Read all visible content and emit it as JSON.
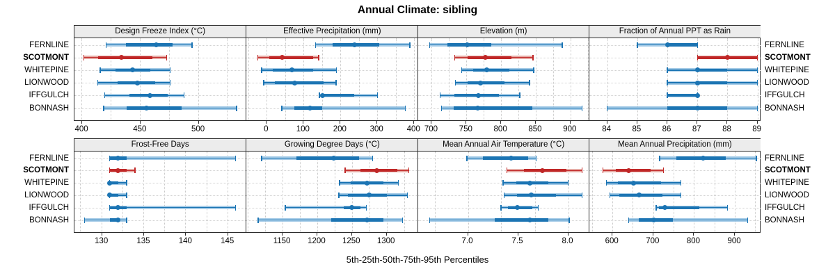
{
  "title": "Annual Climate: sibling",
  "caption": "5th-25th-50th-75th-95th Percentiles",
  "sites": [
    {
      "name": "FERNLINE",
      "highlight": false
    },
    {
      "name": "SCOTMONT",
      "highlight": true
    },
    {
      "name": "WHITEPINE",
      "highlight": false
    },
    {
      "name": "LIONWOOD",
      "highlight": false
    },
    {
      "name": "IFFGULCH",
      "highlight": false
    },
    {
      "name": "BONNASH",
      "highlight": false
    }
  ],
  "colors": {
    "series": "#1b74b3",
    "series_light": "#a5cbe7",
    "highlight": "#c02727",
    "highlight_light": "#e5a8a2",
    "grid": "#c9c9c9",
    "strip_bg": "#ececec",
    "panel_border": "#2b2b2b",
    "text": "#000000"
  },
  "chart_data": {
    "type": "dotplot",
    "subtype": "percentile-intervals",
    "percentiles": [
      5,
      25,
      50,
      75,
      95
    ],
    "rows": [
      "FERNLINE",
      "SCOTMONT",
      "WHITEPINE",
      "LIONWOOD",
      "IFFGULCH",
      "BONNASH"
    ],
    "highlighted_row": "SCOTMONT",
    "legend": "none",
    "panels": [
      {
        "row": 0,
        "title": "Design Freeze Index (°C)",
        "xlim": [
          394,
          541
        ],
        "ticks": [
          {
            "v": 400,
            "label": "400"
          },
          {
            "v": 450,
            "label": "450"
          },
          {
            "v": 500,
            "label": "500"
          }
        ],
        "grid": [
          400,
          425,
          450,
          475,
          500,
          525
        ],
        "series": {
          "FERNLINE": [
            421,
            438,
            464,
            478,
            495
          ],
          "SCOTMONT": [
            402,
            414,
            434,
            461,
            473
          ],
          "WHITEPINE": [
            416,
            429,
            444,
            459,
            476
          ],
          "LIONWOOD": [
            414,
            431,
            448,
            463,
            476
          ],
          "IFFGULCH": [
            420,
            441,
            459,
            474,
            488
          ],
          "BONNASH": [
            419,
            439,
            456,
            486,
            533
          ]
        }
      },
      {
        "row": 0,
        "title": "Effective Precipitation (mm)",
        "xlim": [
          -55,
          410
        ],
        "ticks": [
          {
            "v": 0,
            "label": "0"
          },
          {
            "v": 100,
            "label": "100"
          },
          {
            "v": 200,
            "label": "200"
          },
          {
            "v": 300,
            "label": "300"
          },
          {
            "v": 400,
            "label": "400"
          }
        ],
        "grid": [
          -50,
          0,
          50,
          100,
          150,
          200,
          250,
          300,
          350,
          400
        ],
        "series": {
          "FERNLINE": [
            132,
            178,
            239,
            305,
            388
          ],
          "SCOTMONT": [
            -24,
            6,
            41,
            125,
            141
          ],
          "WHITEPINE": [
            -14,
            16,
            69,
            125,
            189
          ],
          "LIONWOOD": [
            -8,
            22,
            76,
            154,
            188
          ],
          "IFFGULCH": [
            143,
            147,
            152,
            238,
            301
          ],
          "BONNASH": [
            41,
            75,
            118,
            150,
            376
          ]
        }
      },
      {
        "row": 0,
        "title": "Elevation (m)",
        "xlim": [
          680,
          927
        ],
        "ticks": [
          {
            "v": 700,
            "label": "700"
          },
          {
            "v": 750,
            "label": "750"
          },
          {
            "v": 800,
            "label": "800"
          },
          {
            "v": 850,
            "label": "850"
          },
          {
            "v": 900,
            "label": "900"
          }
        ],
        "grid": [
          700,
          725,
          750,
          775,
          800,
          825,
          850,
          875,
          900,
          925
        ],
        "series": {
          "FERNLINE": [
            697,
            723,
            751,
            786,
            888
          ],
          "SCOTMONT": [
            733,
            752,
            777,
            815,
            846
          ],
          "WHITEPINE": [
            743,
            760,
            779,
            812,
            847
          ],
          "LIONWOOD": [
            734,
            752,
            770,
            805,
            841
          ],
          "IFFGULCH": [
            712,
            733,
            767,
            797,
            827
          ],
          "BONNASH": [
            714,
            732,
            766,
            845,
            917
          ]
        }
      },
      {
        "row": 0,
        "title": "Fraction of Annual PPT as Rain",
        "xlim": [
          83.4,
          89.1
        ],
        "ticks": [
          {
            "v": 84,
            "label": "84"
          },
          {
            "v": 85,
            "label": "85"
          },
          {
            "v": 86,
            "label": "86"
          },
          {
            "v": 87,
            "label": "87"
          },
          {
            "v": 88,
            "label": "88"
          },
          {
            "v": 89,
            "label": "89"
          }
        ],
        "grid": [
          84,
          85,
          86,
          87,
          88,
          89
        ],
        "series": {
          "FERNLINE": [
            85,
            86,
            86,
            87,
            87
          ],
          "SCOTMONT": [
            87,
            87,
            88,
            89,
            89
          ],
          "WHITEPINE": [
            86,
            87,
            87,
            88,
            89
          ],
          "LIONWOOD": [
            86,
            87,
            87,
            88,
            89
          ],
          "IFFGULCH": [
            86,
            86,
            87,
            87,
            87
          ],
          "BONNASH": [
            84,
            86,
            87,
            88,
            89
          ]
        }
      },
      {
        "row": 1,
        "title": "Frost-Free Days",
        "xlim": [
          126.8,
          147.2
        ],
        "ticks": [
          {
            "v": 130,
            "label": "130"
          },
          {
            "v": 135,
            "label": "135"
          },
          {
            "v": 140,
            "label": "140"
          },
          {
            "v": 145,
            "label": "145"
          }
        ],
        "grid": [
          127.5,
          130,
          132.5,
          135,
          137.5,
          140,
          142.5,
          145
        ],
        "series": {
          "FERNLINE": [
            131,
            131,
            132,
            133,
            146
          ],
          "SCOTMONT": [
            131,
            131,
            132,
            133,
            134
          ],
          "WHITEPINE": [
            131,
            131,
            131,
            132,
            133
          ],
          "LIONWOOD": [
            131,
            131,
            131,
            132,
            133
          ],
          "IFFGULCH": [
            131,
            131,
            132,
            133,
            146
          ],
          "BONNASH": [
            128,
            131,
            132,
            132,
            133
          ]
        }
      },
      {
        "row": 1,
        "title": "Growing Degree Days (°C)",
        "xlim": [
          1098,
          1345
        ],
        "ticks": [
          {
            "v": 1150,
            "label": "1150"
          },
          {
            "v": 1200,
            "label": "1200"
          },
          {
            "v": 1250,
            "label": "1250"
          },
          {
            "v": 1300,
            "label": "1300"
          }
        ],
        "grid": [
          1100,
          1125,
          1150,
          1175,
          1200,
          1225,
          1250,
          1275,
          1300,
          1325
        ],
        "series": {
          "FERNLINE": [
            1120,
            1170,
            1224,
            1260,
            1280
          ],
          "SCOTMONT": [
            1240,
            1262,
            1286,
            1315,
            1332
          ],
          "WHITEPINE": [
            1232,
            1248,
            1272,
            1295,
            1317
          ],
          "LIONWOOD": [
            1231,
            1244,
            1275,
            1300,
            1330
          ],
          "IFFGULCH": [
            1154,
            1238,
            1250,
            1262,
            1271
          ],
          "BONNASH": [
            1115,
            1220,
            1272,
            1295,
            1323
          ]
        }
      },
      {
        "row": 1,
        "title": "Mean Annual Air Temperature (°C)",
        "xlim": [
          6.5,
          8.21
        ],
        "ticks": [
          {
            "v": 7.0,
            "label": "7.0"
          },
          {
            "v": 7.5,
            "label": "7.5"
          },
          {
            "v": 8.0,
            "label": "8.0"
          }
        ],
        "grid": [
          6.667,
          7.0,
          7.333,
          7.667,
          8.0
        ],
        "series": {
          "FERNLINE": [
            6.99,
            7.15,
            7.43,
            7.6,
            7.68
          ],
          "SCOTMONT": [
            7.39,
            7.56,
            7.74,
            7.98,
            8.14
          ],
          "WHITEPINE": [
            7.35,
            7.48,
            7.62,
            7.8,
            8.0
          ],
          "LIONWOOD": [
            7.36,
            7.49,
            7.63,
            7.88,
            8.14
          ],
          "IFFGULCH": [
            7.33,
            7.4,
            7.49,
            7.64,
            7.7
          ],
          "BONNASH": [
            6.62,
            7.27,
            7.62,
            7.8,
            8.01
          ]
        }
      },
      {
        "row": 1,
        "title": "Mean Annual Precipitation (mm)",
        "xlim": [
          543,
          963
        ],
        "ticks": [
          {
            "v": 600,
            "label": "600"
          },
          {
            "v": 700,
            "label": "700"
          },
          {
            "v": 800,
            "label": "800"
          },
          {
            "v": 900,
            "label": "900"
          }
        ],
        "grid": [
          550,
          600,
          650,
          700,
          750,
          800,
          850,
          900,
          950
        ],
        "series": {
          "FERNLINE": [
            716,
            757,
            822,
            878,
            953
          ],
          "SCOTMONT": [
            577,
            609,
            640,
            694,
            725
          ],
          "WHITEPINE": [
            585,
            614,
            651,
            719,
            768
          ],
          "LIONWOOD": [
            594,
            617,
            665,
            722,
            768
          ],
          "IFFGULCH": [
            707,
            714,
            728,
            813,
            882
          ],
          "BONNASH": [
            640,
            665,
            701,
            748,
            931
          ]
        }
      }
    ]
  }
}
